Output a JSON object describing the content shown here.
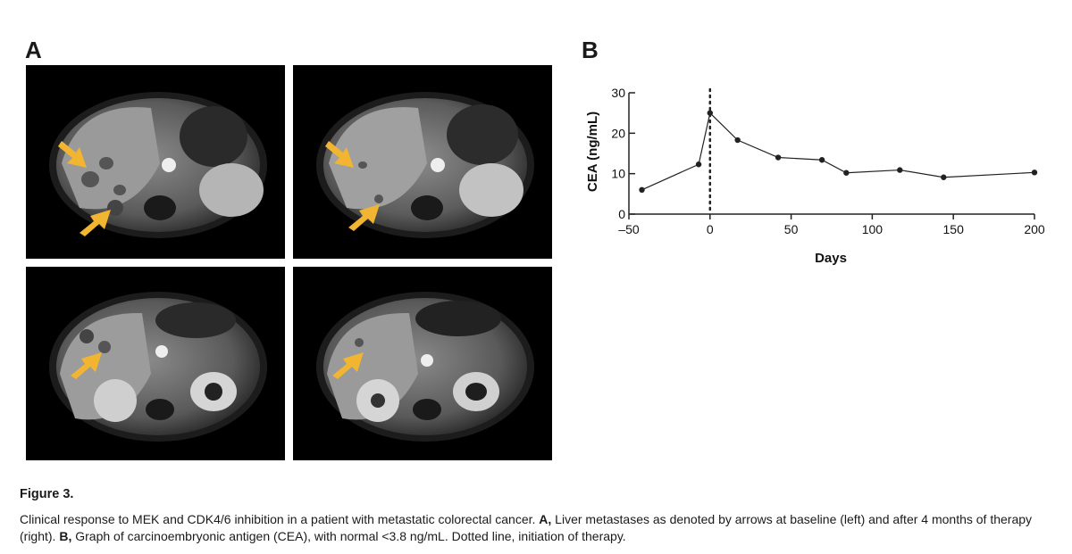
{
  "panels": {
    "a_label": "A",
    "b_label": "B"
  },
  "images": [
    {
      "position": "top-left",
      "description_name": "liver-mri-baseline-upper",
      "arrow_count": 2
    },
    {
      "position": "top-right",
      "description_name": "liver-mri-after-therapy-upper",
      "arrow_count": 2
    },
    {
      "position": "bottom-left",
      "description_name": "liver-mri-baseline-lower",
      "arrow_count": 1
    },
    {
      "position": "bottom-right",
      "description_name": "liver-mri-after-therapy-lower",
      "arrow_count": 1
    }
  ],
  "colors": {
    "arrow": "#f2b531",
    "line": "#222222"
  },
  "chart_data": {
    "type": "line",
    "title": "",
    "xlabel": "Days",
    "ylabel": "CEA (ng/mL)",
    "xlim": [
      -50,
      200
    ],
    "ylim": [
      0,
      30
    ],
    "xticks": [
      -50,
      0,
      50,
      100,
      150,
      200
    ],
    "xtick_labels": [
      "–50",
      "0",
      "50",
      "100",
      "150",
      "200"
    ],
    "yticks": [
      0,
      10,
      20,
      30
    ],
    "ytick_labels": [
      "0",
      "10",
      "20",
      "30"
    ],
    "vline": {
      "x": 0,
      "style": "dotted"
    },
    "grid": false,
    "legend": "none",
    "series": [
      {
        "x": [
          -42,
          -7,
          0,
          17,
          42,
          69,
          84,
          117,
          144,
          200
        ],
        "y": [
          6,
          12.3,
          25,
          18.3,
          14,
          13.4,
          10.2,
          10.9,
          9.1,
          10.3
        ]
      }
    ]
  },
  "caption": {
    "figure_label": "Figure 3.",
    "intro": "Clinical response to MEK and CDK4/6 inhibition in a patient with metastatic colorectal cancer. ",
    "a_ref": "A,",
    "a_text": " Liver metastases as denoted by arrows at baseline (left) and after 4 months of therapy (right). ",
    "b_ref": "B,",
    "b_text": " Graph of carcinoembryonic antigen (CEA), with normal <3.8 ng/mL. Dotted line, initiation of therapy."
  }
}
